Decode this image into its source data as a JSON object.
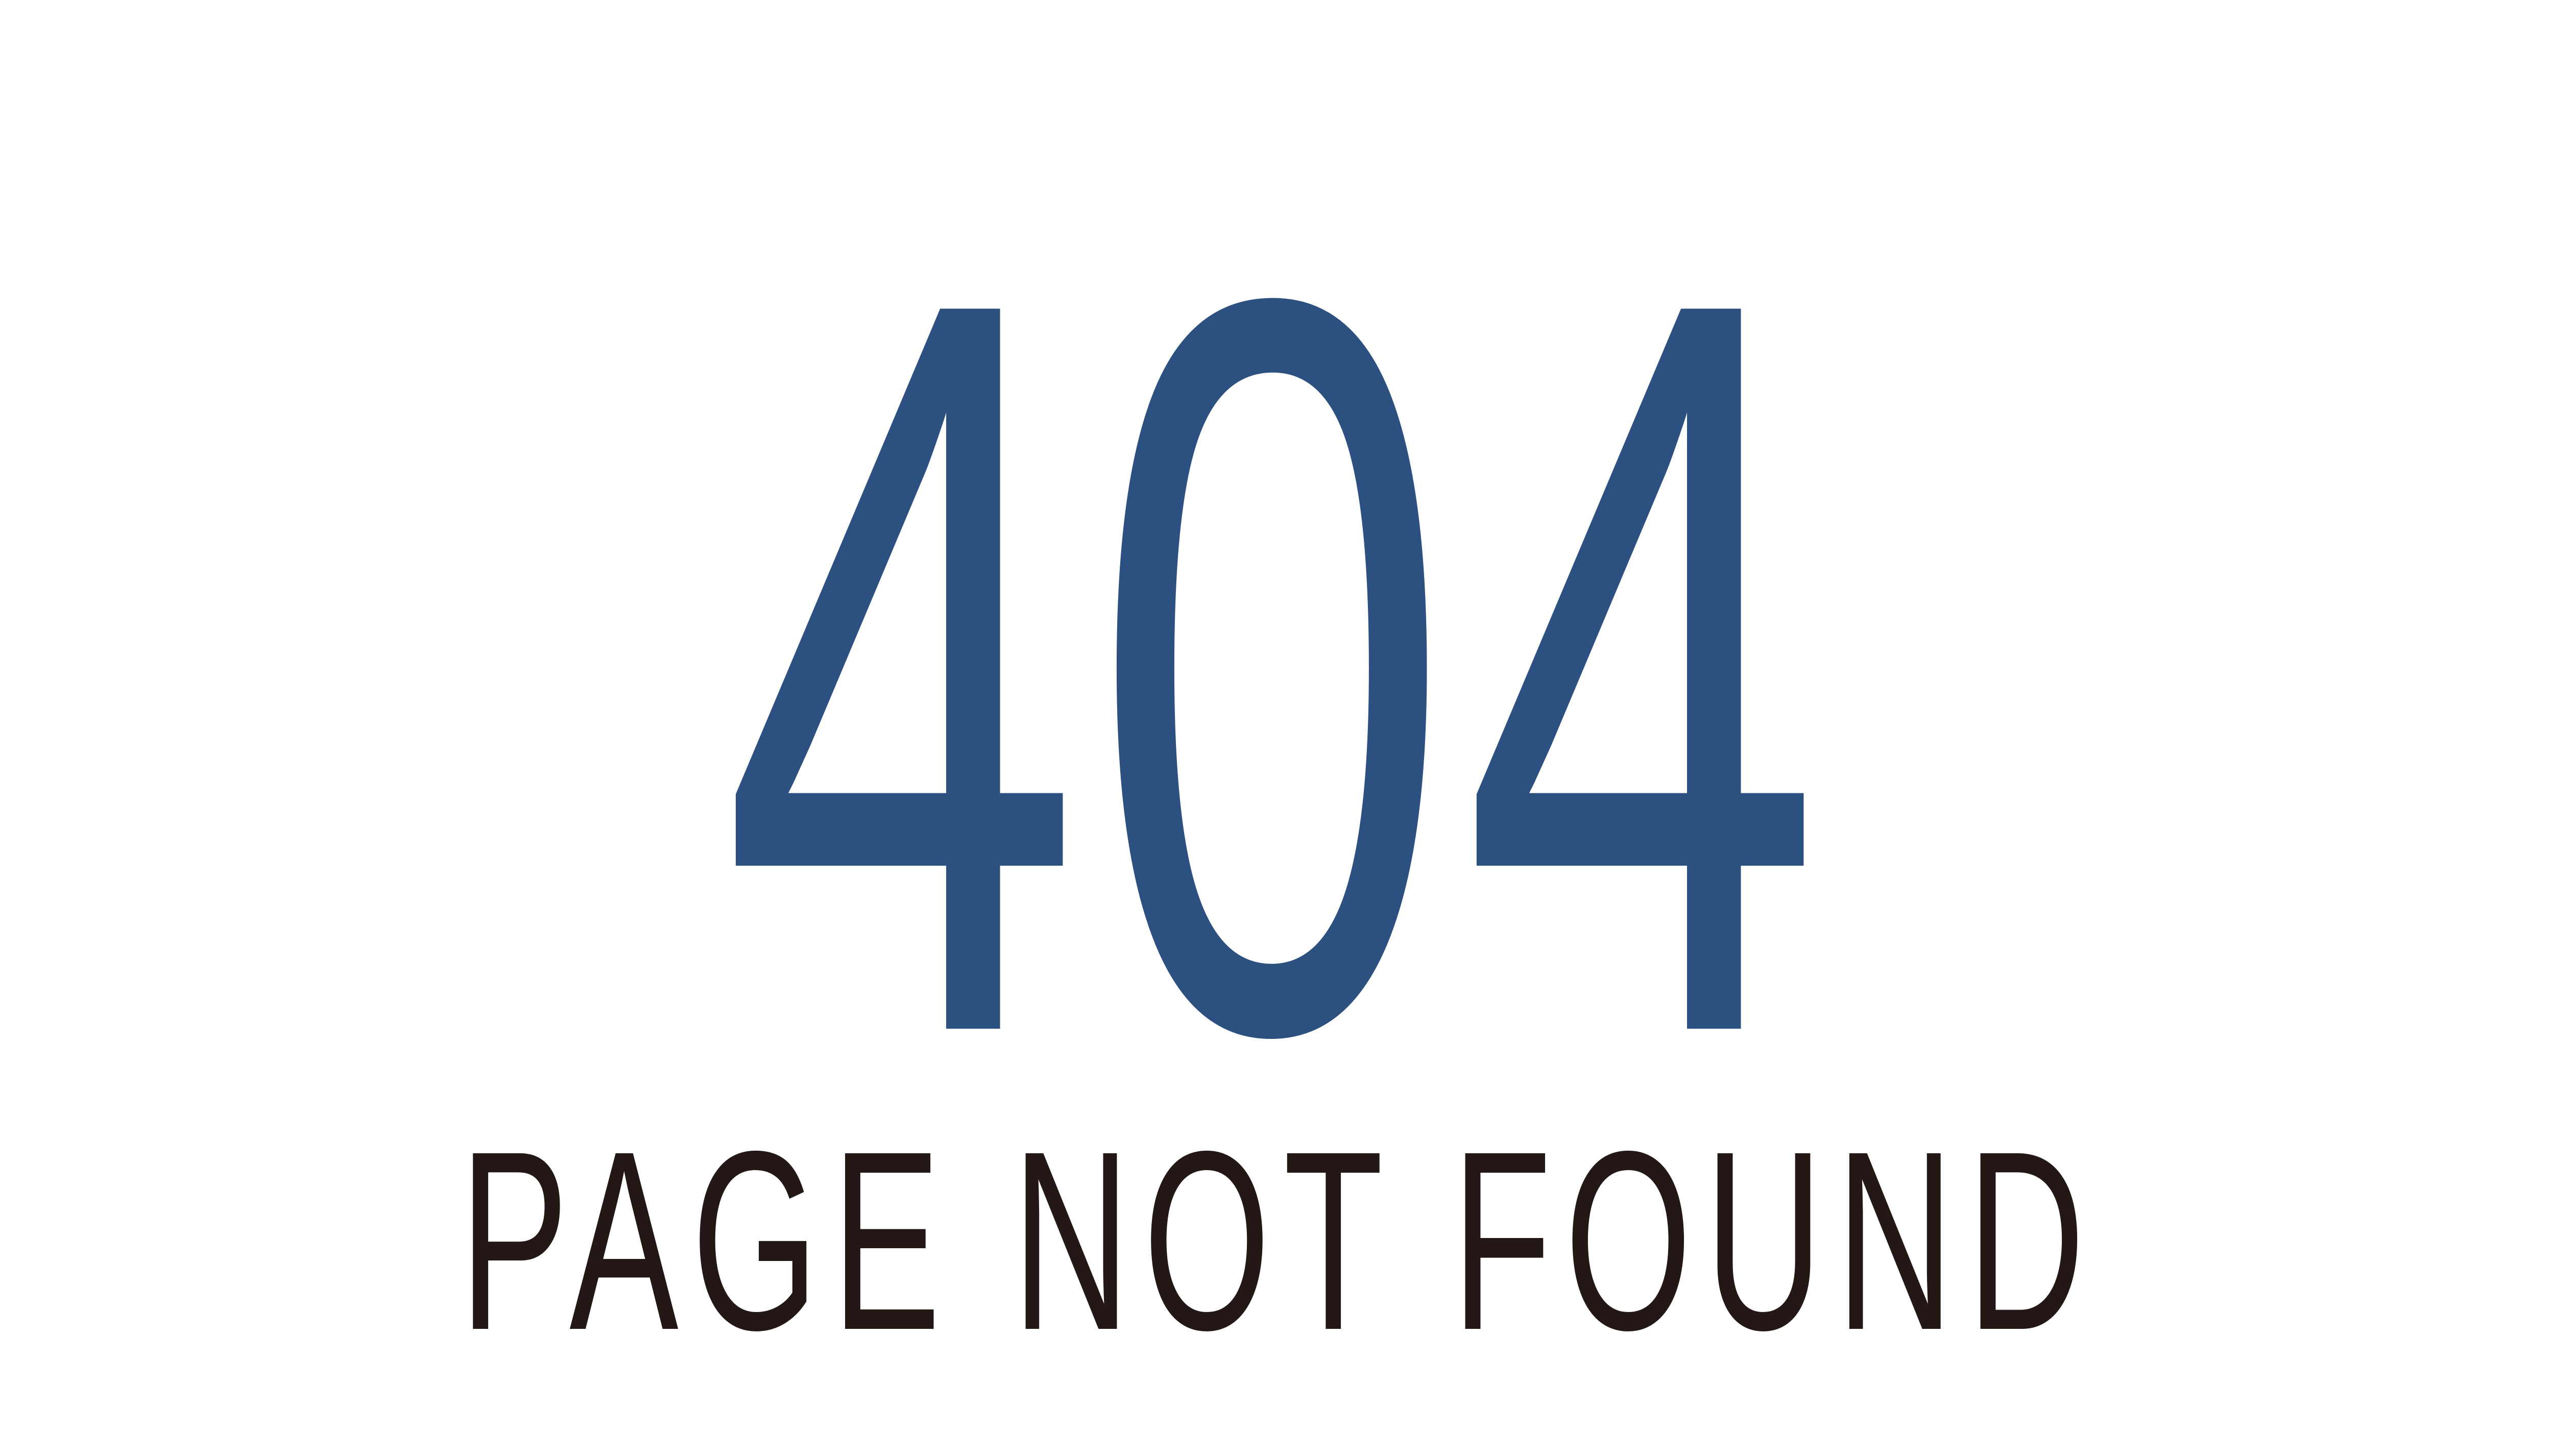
{
  "error": {
    "code": "404",
    "message": "PAGE NOT FOUND"
  },
  "colors": {
    "code": "#2c5080",
    "message": "#231815",
    "background": "#ffffff"
  }
}
